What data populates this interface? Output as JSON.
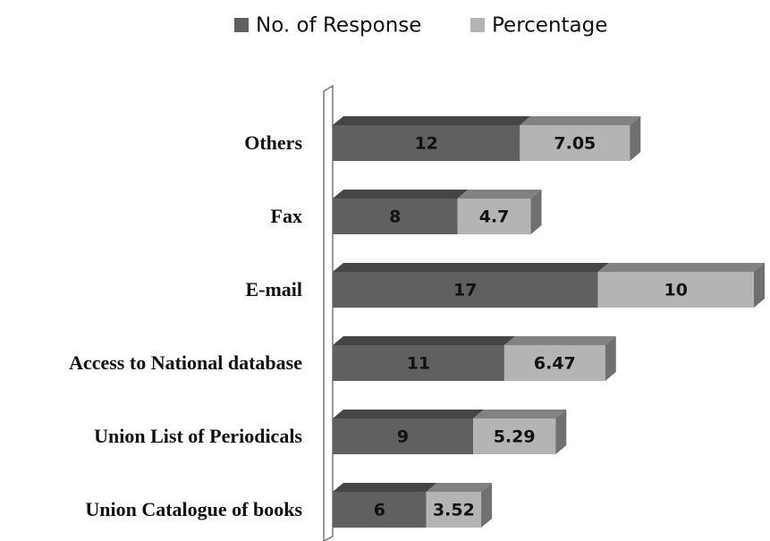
{
  "chart_data": {
    "type": "bar",
    "orientation": "horizontal",
    "stacked": true,
    "legend": "top",
    "categories": [
      "Union Catalogue of books",
      "Union List of Periodicals",
      "Access to National database",
      "E-mail",
      "Fax",
      "Others"
    ],
    "series": [
      {
        "name": "No. of Response",
        "color": "#606060",
        "values": [
          6,
          9,
          11,
          17,
          8,
          12
        ]
      },
      {
        "name": "Percentage",
        "color": "#b4b4b4",
        "values": [
          3.52,
          5.29,
          6.47,
          10,
          4.7,
          7.05
        ]
      }
    ]
  }
}
